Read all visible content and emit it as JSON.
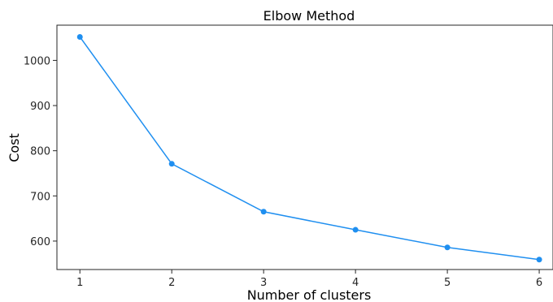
{
  "chart_data": {
    "type": "line",
    "title": "Elbow Method",
    "xlabel": "Number of clusters",
    "ylabel": "Cost",
    "x": [
      1,
      2,
      3,
      4,
      5,
      6
    ],
    "series": [
      {
        "values": [
          1052,
          771,
          665,
          625,
          586,
          559
        ],
        "color": "#1f8ff0"
      }
    ],
    "xlim": [
      0.75,
      6.15
    ],
    "ylim": [
      537,
      1078
    ],
    "xticks": [
      1,
      2,
      3,
      4,
      5,
      6
    ],
    "yticks": [
      600,
      700,
      800,
      900,
      1000
    ],
    "grid": false,
    "legend": "none",
    "marker": "circle"
  }
}
